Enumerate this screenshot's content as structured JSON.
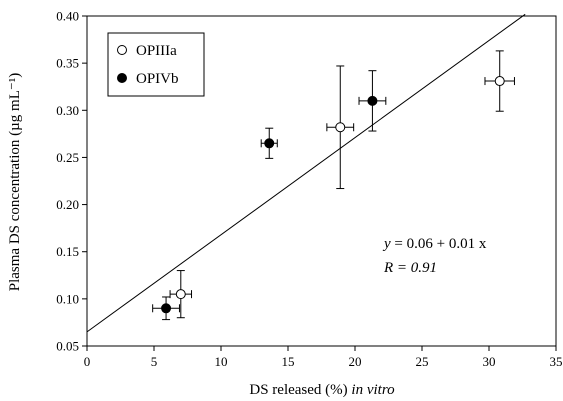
{
  "chart_data": {
    "type": "scatter",
    "xlabel": "DS released (%)",
    "xlabel_suffix": "in vitro",
    "ylabel": "Plasma DS concentration (µg mL⁻¹)",
    "xlim": [
      0,
      35
    ],
    "ylim": [
      0.05,
      0.4
    ],
    "xticks": [
      "0",
      "5",
      "10",
      "15",
      "20",
      "25",
      "30",
      "35"
    ],
    "yticks": [
      "0.05",
      "0.10",
      "0.15",
      "0.20",
      "0.25",
      "0.30",
      "0.35",
      "0.40"
    ],
    "grid": false,
    "legend_position": "top-left",
    "series": [
      {
        "name": "OPIIIa",
        "marker": "open-circle",
        "points": [
          {
            "x": 7.0,
            "y": 0.105,
            "x_err": 0.8,
            "y_err": 0.025
          },
          {
            "x": 18.9,
            "y": 0.282,
            "x_err": 1.0,
            "y_err": 0.065
          },
          {
            "x": 30.8,
            "y": 0.331,
            "x_err": 1.1,
            "y_err": 0.032
          }
        ]
      },
      {
        "name": "OPIVb",
        "marker": "filled-circle",
        "points": [
          {
            "x": 5.9,
            "y": 0.09,
            "x_err": 1.0,
            "y_err": 0.012
          },
          {
            "x": 13.6,
            "y": 0.265,
            "x_err": 0.6,
            "y_err": 0.016
          },
          {
            "x": 21.3,
            "y": 0.31,
            "x_err": 1.0,
            "y_err": 0.032
          }
        ]
      }
    ],
    "fit_line": {
      "intercept": 0.065,
      "slope": 0.0103,
      "x_range": [
        0,
        32.7
      ]
    },
    "equation_prefix": "y",
    "equation_rest": " = 0.06 + 0.01 x",
    "r_prefix": "R = ",
    "r_value": "0.91"
  }
}
